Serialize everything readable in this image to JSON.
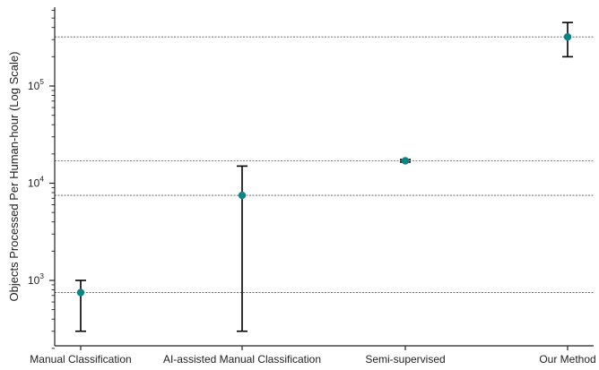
{
  "chart_data": {
    "type": "scatter",
    "title": "",
    "xlabel": "",
    "ylabel": "Objects Processed Per Human-hour (Log Scale)",
    "yscale": "log",
    "ylim": [
      200,
      600000
    ],
    "categories": [
      "Manual Classification",
      "AI-assisted Manual Classification",
      "Semi-supervised",
      "Our Method"
    ],
    "series": [
      {
        "values": [
          750,
          7500,
          17000,
          320000
        ],
        "err_low": [
          300,
          300,
          16500,
          200000
        ],
        "err_high": [
          1000,
          15000,
          17500,
          450000
        ]
      }
    ],
    "reference_lines": [
      320000,
      17000,
      7500,
      750
    ],
    "y_ticks": [
      {
        "value": 1000,
        "base": "10",
        "exp": "3"
      },
      {
        "value": 10000,
        "base": "10",
        "exp": "4"
      },
      {
        "value": 100000,
        "base": "10",
        "exp": "5"
      }
    ],
    "grid": false,
    "marker_color": "#0a8585",
    "errorbar_color": "#000000",
    "reference_line_color": "#555555"
  }
}
